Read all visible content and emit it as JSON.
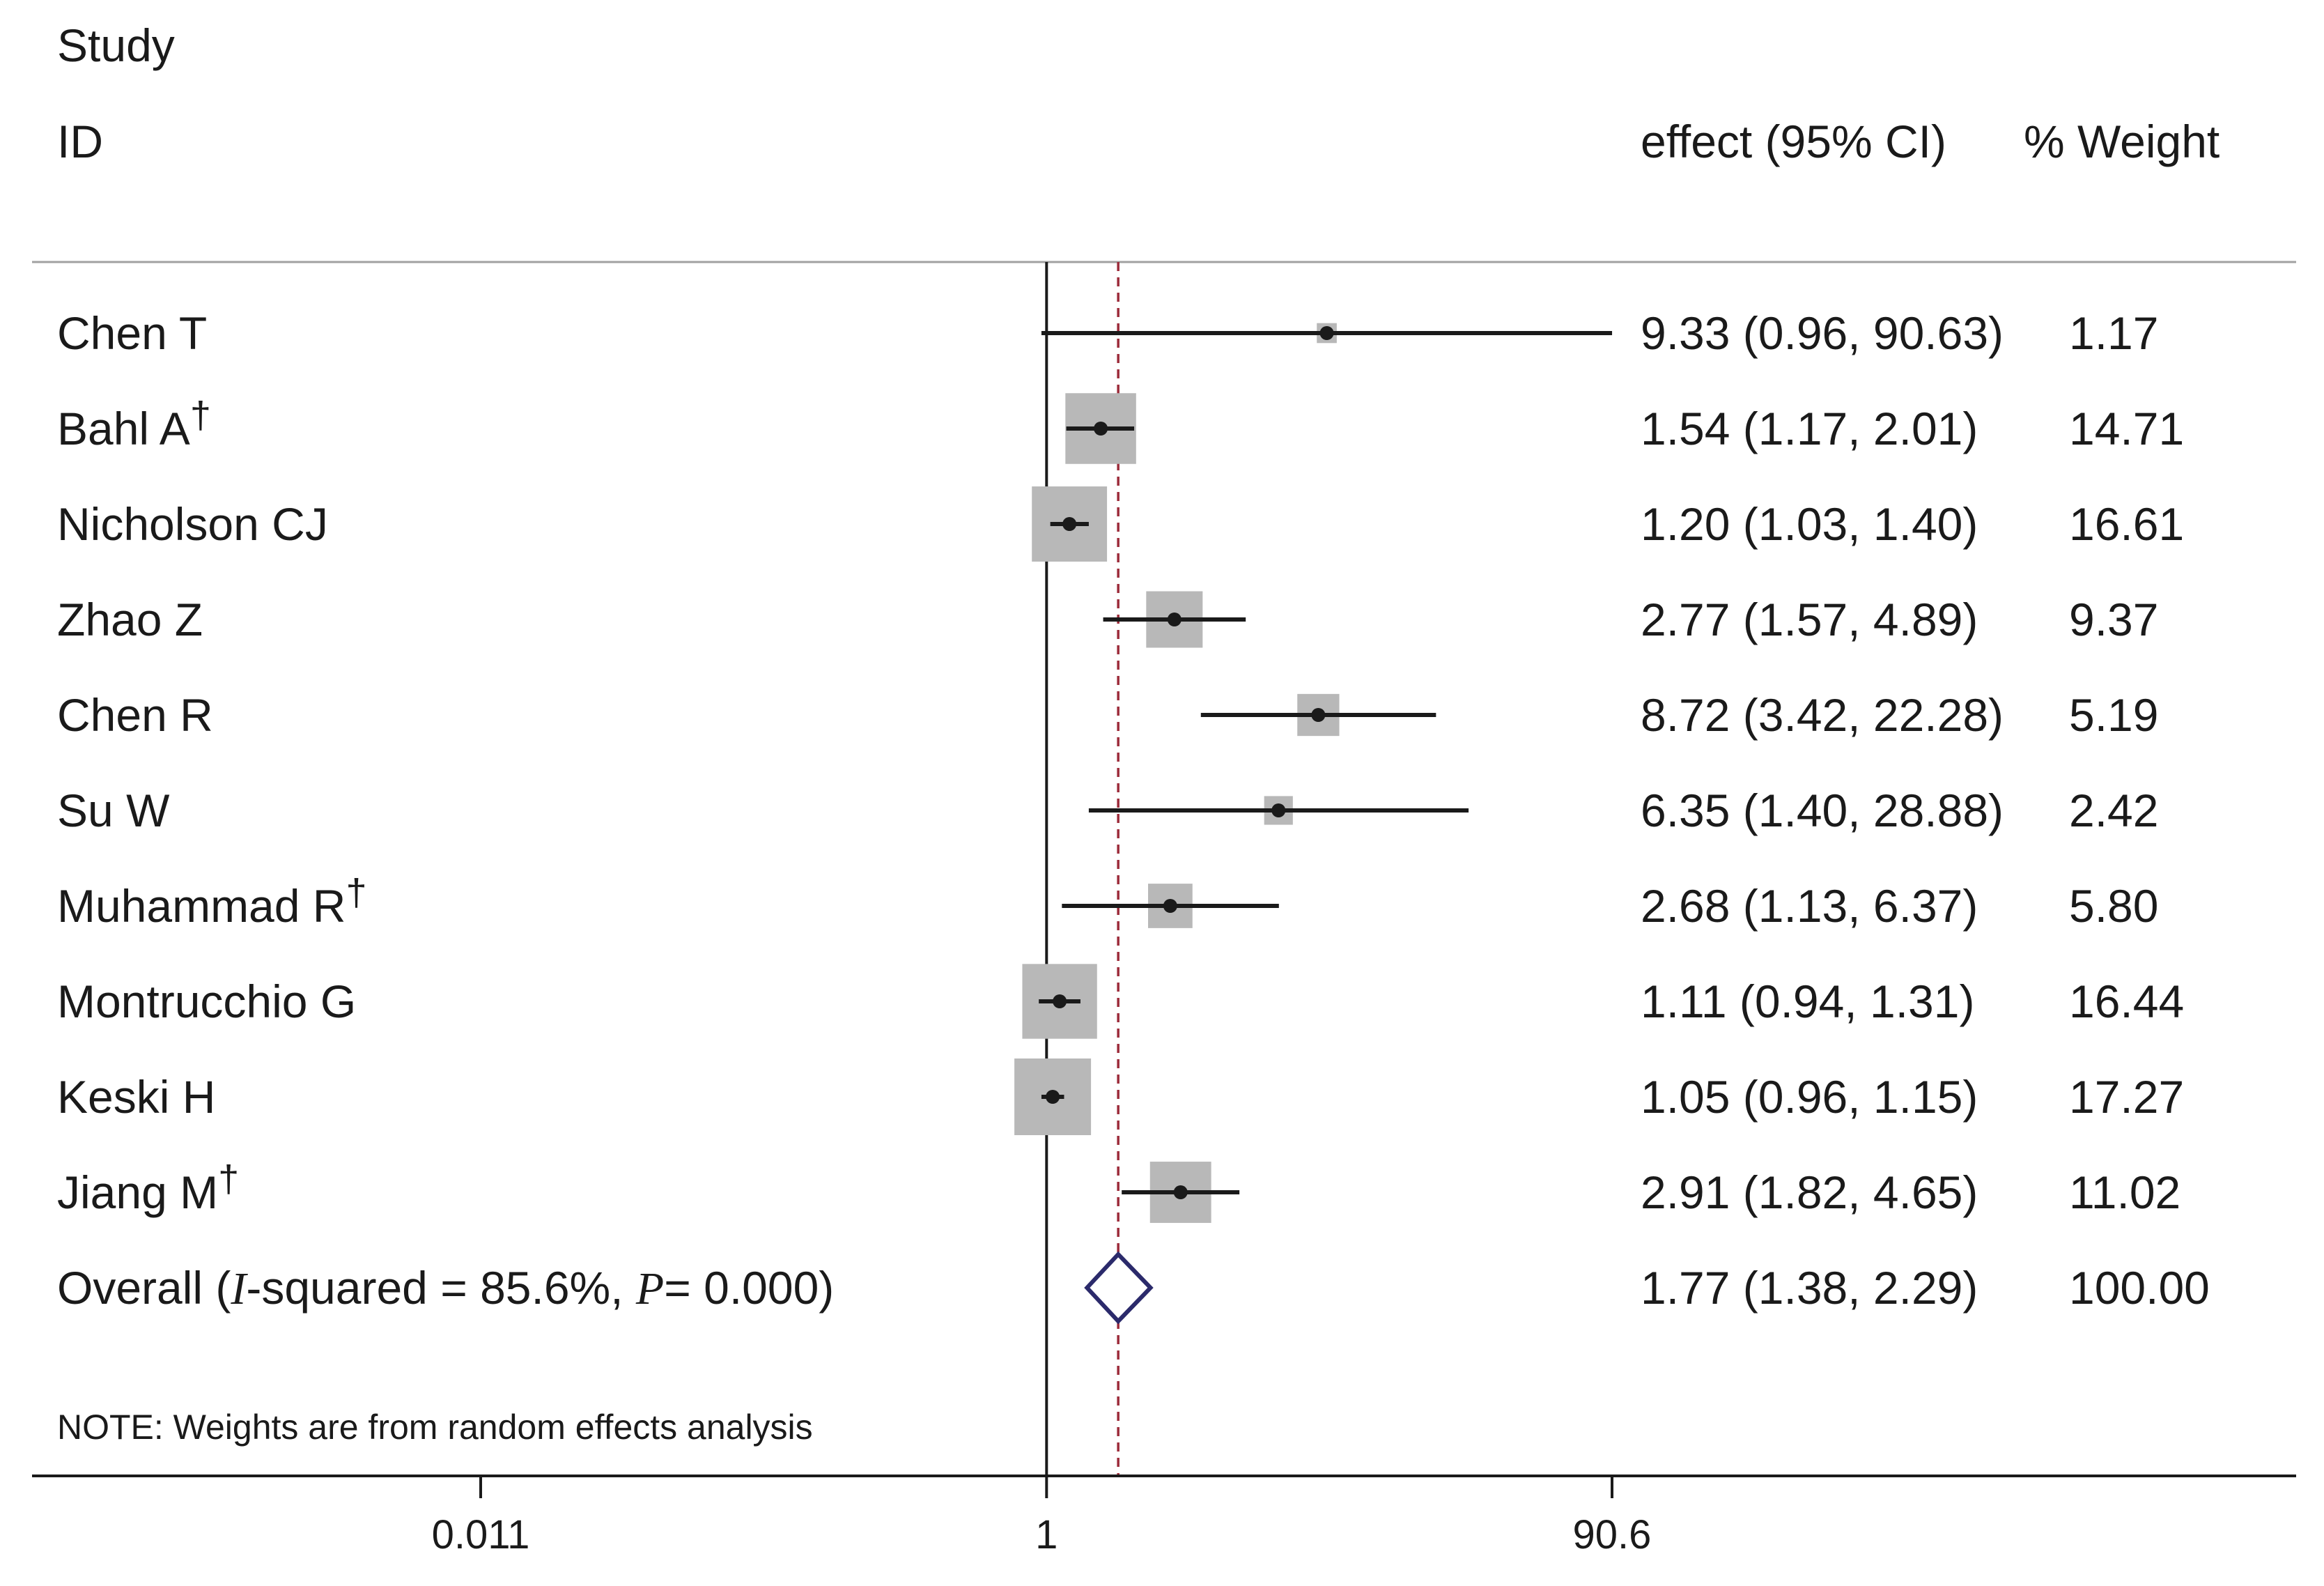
{
  "chart_data": {
    "type": "forest",
    "header": {
      "study": "Study",
      "id": "ID",
      "effect": "effect (95% CI)",
      "weight": "% Weight"
    },
    "studies": [
      {
        "name": "Chen T",
        "dagger": false,
        "effect": 9.33,
        "lower": 0.96,
        "upper": 90.63,
        "effect_text": "9.33 (0.96, 90.63)",
        "weight": 1.17,
        "weight_text": "1.17"
      },
      {
        "name": "Bahl A",
        "dagger": true,
        "effect": 1.54,
        "lower": 1.17,
        "upper": 2.01,
        "effect_text": "1.54 (1.17, 2.01)",
        "weight": 14.71,
        "weight_text": "14.71"
      },
      {
        "name": "Nicholson CJ",
        "dagger": false,
        "effect": 1.2,
        "lower": 1.03,
        "upper": 1.4,
        "effect_text": "1.20 (1.03, 1.40)",
        "weight": 16.61,
        "weight_text": "16.61"
      },
      {
        "name": "Zhao Z",
        "dagger": false,
        "effect": 2.77,
        "lower": 1.57,
        "upper": 4.89,
        "effect_text": "2.77 (1.57, 4.89)",
        "weight": 9.37,
        "weight_text": "9.37"
      },
      {
        "name": "Chen R",
        "dagger": false,
        "effect": 8.72,
        "lower": 3.42,
        "upper": 22.28,
        "effect_text": "8.72 (3.42, 22.28)",
        "weight": 5.19,
        "weight_text": "5.19"
      },
      {
        "name": "Su W",
        "dagger": false,
        "effect": 6.35,
        "lower": 1.4,
        "upper": 28.88,
        "effect_text": "6.35 (1.40, 28.88)",
        "weight": 2.42,
        "weight_text": "2.42"
      },
      {
        "name": "Muhammad R",
        "dagger": true,
        "effect": 2.68,
        "lower": 1.13,
        "upper": 6.37,
        "effect_text": "2.68 (1.13, 6.37)",
        "weight": 5.8,
        "weight_text": "5.80"
      },
      {
        "name": "Montrucchio G",
        "dagger": false,
        "effect": 1.11,
        "lower": 0.94,
        "upper": 1.31,
        "effect_text": "1.11 (0.94, 1.31)",
        "weight": 16.44,
        "weight_text": "16.44"
      },
      {
        "name": "Keski H",
        "dagger": false,
        "effect": 1.05,
        "lower": 0.96,
        "upper": 1.15,
        "effect_text": "1.05 (0.96, 1.15)",
        "weight": 17.27,
        "weight_text": "17.27"
      },
      {
        "name": "Jiang M",
        "dagger": true,
        "effect": 2.91,
        "lower": 1.82,
        "upper": 4.65,
        "effect_text": "2.91 (1.82, 4.65)",
        "weight": 11.02,
        "weight_text": "11.02"
      }
    ],
    "dagger_symbol": "†",
    "overall": {
      "label": "Overall",
      "isq_symbol": "I",
      "isq_text": "-squared = 85.6%, ",
      "p_symbol": "P",
      "p_text": "= 0.000)",
      "open_paren": "(",
      "effect": 1.77,
      "lower": 1.38,
      "upper": 2.29,
      "effect_text": "1.77 (1.38, 2.29)",
      "weight_text": "100.00"
    },
    "note": "NOTE: Weights are from random effects analysis",
    "x_scale": "log",
    "xlim": [
      0.011,
      90.6
    ],
    "x_ticks": [
      {
        "value": 0.011,
        "label": "0.011"
      },
      {
        "value": 1,
        "label": "1"
      },
      {
        "value": 90.6,
        "label": "90.6"
      }
    ],
    "null_line": 1,
    "colors": {
      "square": "#b8b8b8",
      "ci_line": "#1a1a1a",
      "null_line": "#1a1a1a",
      "overall_line": "#9c2b3a",
      "diamond": "#2b2a6b",
      "rule": "#a0a0a0",
      "axis": "#1a1a1a"
    }
  }
}
